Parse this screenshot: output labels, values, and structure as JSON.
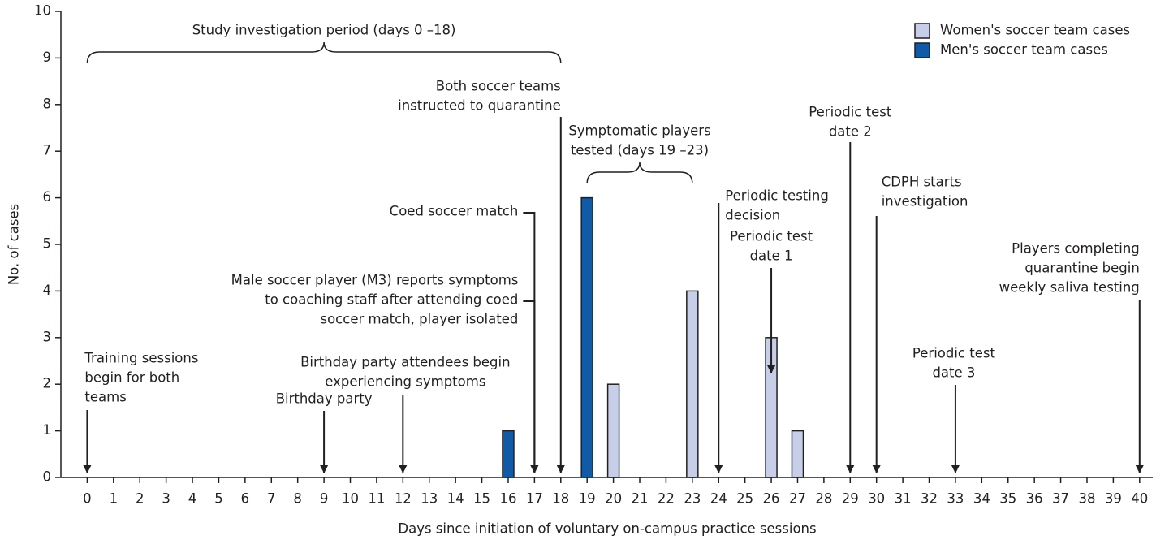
{
  "chart_data": {
    "type": "bar",
    "x_label": "Days since initiation of voluntary on-campus practice sessions",
    "y_label": "No. of cases",
    "xlim": [
      -1,
      40.5
    ],
    "ylim": [
      0,
      10
    ],
    "xticks": [
      0,
      1,
      2,
      3,
      4,
      5,
      6,
      7,
      8,
      9,
      10,
      11,
      12,
      13,
      14,
      15,
      16,
      17,
      18,
      19,
      20,
      21,
      22,
      23,
      24,
      25,
      26,
      27,
      28,
      29,
      30,
      31,
      32,
      33,
      34,
      35,
      36,
      37,
      38,
      39,
      40
    ],
    "yticks": [
      0,
      1,
      2,
      3,
      4,
      5,
      6,
      7,
      8,
      9,
      10
    ],
    "legend": "upper right",
    "series": [
      {
        "name": "Women's soccer team cases",
        "color": "#c6cee8",
        "x": [
          20,
          23,
          26,
          27
        ],
        "values": [
          2,
          4,
          3,
          1
        ]
      },
      {
        "name": "Men's soccer team cases",
        "color": "#0f5ba8",
        "x": [
          16,
          19
        ],
        "values": [
          1,
          6
        ]
      }
    ],
    "brackets": [
      {
        "lines": [
          "Study investigation period (days 0 –18)"
        ],
        "span": [
          0,
          18
        ]
      },
      {
        "lines": [
          "Symptomatic players",
          "tested (days 19 –23)"
        ],
        "span": [
          19,
          23
        ]
      }
    ],
    "annotations": [
      {
        "lines": [
          "Training sessions",
          "begin for both",
          "teams"
        ],
        "x": 0
      },
      {
        "lines": [
          "Birthday party"
        ],
        "x": 9
      },
      {
        "lines": [
          "Birthday party attendees begin",
          "experiencing symptoms"
        ],
        "x": 12
      },
      {
        "lines": [
          "Male soccer player (M3) reports symptoms",
          "to coaching staff after attending coed",
          "soccer match, player isolated"
        ],
        "x": 17
      },
      {
        "lines": [
          "Coed soccer match"
        ],
        "x": 17
      },
      {
        "lines": [
          "Both soccer teams",
          "instructed to quarantine"
        ],
        "x": 18
      },
      {
        "lines": [
          "Periodic testing",
          "decision"
        ],
        "x": 24
      },
      {
        "lines": [
          "Periodic test",
          "date 1"
        ],
        "x": 26
      },
      {
        "lines": [
          "Periodic test",
          "date 2"
        ],
        "x": 29
      },
      {
        "lines": [
          "CDPH starts",
          "investigation"
        ],
        "x": 30
      },
      {
        "lines": [
          "Periodic test",
          "date 3"
        ],
        "x": 33
      },
      {
        "lines": [
          "Players completing",
          "quarantine begin",
          "weekly saliva testing"
        ],
        "x": 40
      }
    ]
  }
}
